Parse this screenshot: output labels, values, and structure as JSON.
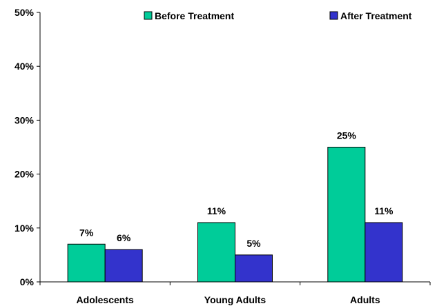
{
  "chart_data": {
    "type": "bar",
    "categories": [
      "Adolescents",
      "Young Adults",
      "Adults"
    ],
    "series": [
      {
        "name": "Before Treatment",
        "values": [
          7,
          11,
          25
        ],
        "labels": [
          "7%",
          "11%",
          "25%"
        ],
        "color": "#00CC99"
      },
      {
        "name": "After Treatment",
        "values": [
          6,
          5,
          11
        ],
        "labels": [
          "6%",
          "5%",
          "11%"
        ],
        "color": "#3333CC"
      }
    ],
    "ylim": [
      0,
      50
    ],
    "yticks": [
      0,
      10,
      20,
      30,
      40,
      50
    ],
    "ytick_labels": [
      "0%",
      "10%",
      "20%",
      "30%",
      "40%",
      "50%"
    ],
    "grid": false,
    "legend_position": "top"
  }
}
